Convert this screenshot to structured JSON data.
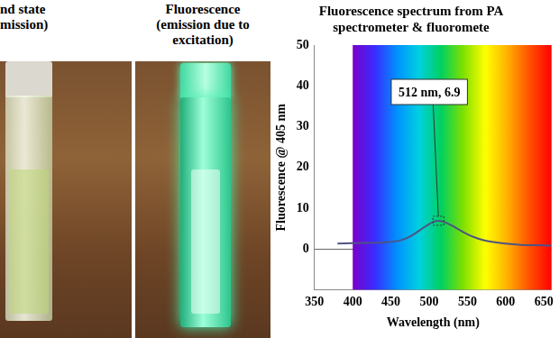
{
  "photos": [
    {
      "caption": [
        "nd state",
        "mission)"
      ]
    },
    {
      "caption": [
        "Fluorescence",
        "(emission due to",
        "excitation)"
      ]
    }
  ],
  "chart_data": {
    "type": "line",
    "title": [
      "Fluorescence spectrum from PA",
      "spectrometer & fluoromete"
    ],
    "x_label": "Wavelength (nm)",
    "y_label": "Fluorescence @ 405 nm",
    "x": [
      380,
      400,
      420,
      440,
      460,
      470,
      480,
      490,
      500,
      505,
      510,
      512,
      515,
      520,
      530,
      540,
      550,
      560,
      570,
      580,
      600,
      620,
      640,
      660
    ],
    "values": [
      1.3,
      1.4,
      1.5,
      1.6,
      2.0,
      2.6,
      3.6,
      4.9,
      6.1,
      6.6,
      6.85,
      6.9,
      6.85,
      6.6,
      5.7,
      4.6,
      3.6,
      2.8,
      2.2,
      1.8,
      1.3,
      1.0,
      0.9,
      0.8
    ],
    "color": "#4f5384",
    "xlim": [
      350,
      660
    ],
    "xticks": [
      350,
      400,
      450,
      500,
      550,
      600,
      650
    ],
    "ylim": [
      -10,
      50
    ],
    "yticks": [
      0,
      10,
      20,
      30,
      40,
      50
    ],
    "grid": false,
    "annotations": [
      {
        "text": "512 nm, 6.9",
        "x": 512,
        "y": 6.9
      }
    ]
  }
}
